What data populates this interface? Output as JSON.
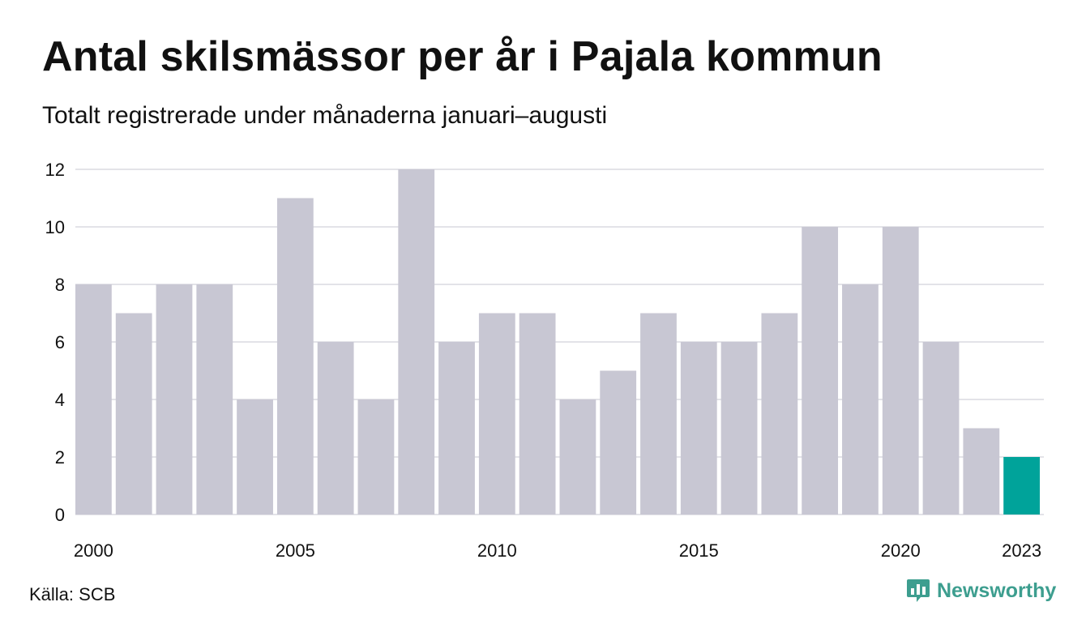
{
  "header": {
    "title": "Antal skilsmässor per år i Pajala kommun",
    "subtitle": "Totalt registrerade under månaderna januari–augusti"
  },
  "footer": {
    "source": "Källa: SCB",
    "brand": "Newsworthy",
    "brand_icon": "bar-chart-bubble-icon",
    "brand_color": "#3d9e8f"
  },
  "chart_data": {
    "type": "bar",
    "categories": [
      "2000",
      "2001",
      "2002",
      "2003",
      "2004",
      "2005",
      "2006",
      "2007",
      "2008",
      "2009",
      "2010",
      "2011",
      "2012",
      "2013",
      "2014",
      "2015",
      "2016",
      "2017",
      "2018",
      "2019",
      "2020",
      "2021",
      "2022",
      "2023"
    ],
    "values": [
      8,
      7,
      8,
      8,
      4,
      11,
      6,
      4,
      12,
      6,
      7,
      7,
      4,
      5,
      7,
      6,
      6,
      7,
      10,
      8,
      10,
      6,
      3,
      2
    ],
    "x_tick_labels": [
      "2000",
      "2005",
      "2010",
      "2015",
      "2020",
      "2023"
    ],
    "y_ticks": [
      0,
      2,
      4,
      6,
      8,
      10,
      12
    ],
    "ylim": [
      0,
      12
    ],
    "grid": true,
    "bar_color": "#c8c7d3",
    "highlight_color": "#00a39a",
    "highlight_category": "2023",
    "xlabel": "",
    "ylabel": ""
  }
}
